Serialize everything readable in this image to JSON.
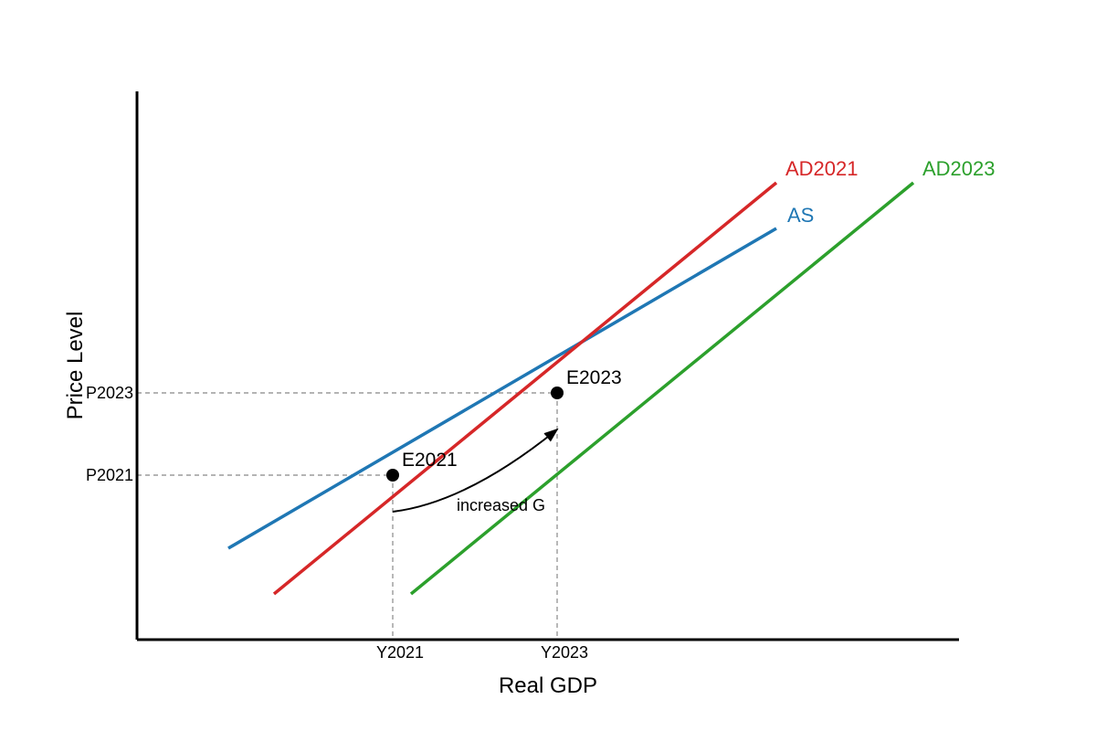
{
  "chart_data": {
    "type": "line",
    "xlabel": "Real GDP",
    "ylabel": "Price Level",
    "series": [
      {
        "name": "AS",
        "color": "#1f77b4",
        "points": [
          [
            100,
            100
          ],
          [
            700,
            450
          ]
        ]
      },
      {
        "name": "AD2021",
        "color": "#d62728",
        "points": [
          [
            150,
            50
          ],
          [
            700,
            500
          ]
        ]
      },
      {
        "name": "AD2023",
        "color": "#2ca02c",
        "points": [
          [
            300,
            50
          ],
          [
            850,
            500
          ]
        ]
      }
    ],
    "equilibria": [
      {
        "label": "E2021",
        "x": 280,
        "y": 180,
        "x_tick": "Y2021",
        "y_tick": "P2021"
      },
      {
        "label": "E2023",
        "x": 460,
        "y": 270,
        "x_tick": "Y2023",
        "y_tick": "P2023"
      }
    ],
    "annotation": {
      "text": "increased G",
      "from": [
        280,
        140
      ],
      "to": [
        460,
        230
      ]
    }
  }
}
